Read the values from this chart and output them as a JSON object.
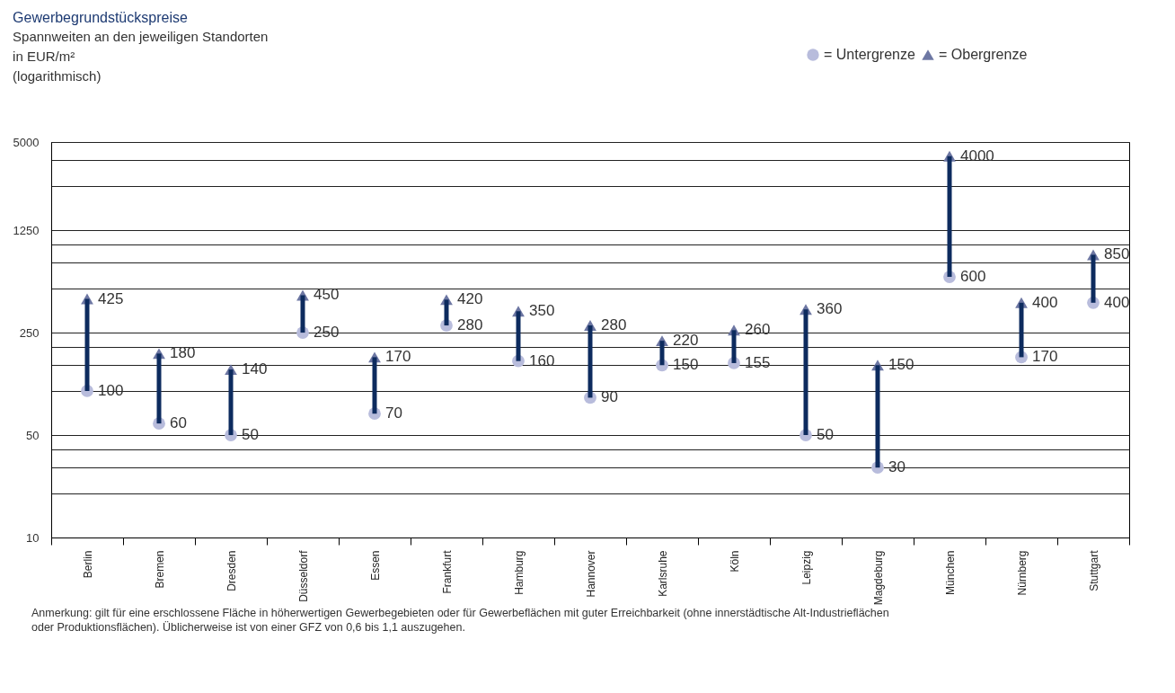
{
  "chart_data": {
    "type": "scatter",
    "title": "Gewerbegrundstückspreise",
    "subtitle": "Spannweiten an den jeweiligen Standorten\nin EUR/m²\n(logarithmisch)",
    "categories": [
      "Berlin",
      "Bremen",
      "Dresden",
      "Düsseldorf",
      "Essen",
      "Frankfurt",
      "Hamburg",
      "Hannover",
      "Karlsruhe",
      "Köln",
      "Leipzig",
      "Magdeburg",
      "München",
      "Nürnberg",
      "Stuttgart"
    ],
    "series": [
      {
        "type": "bar",
        "color": "#0d2b5e",
        "base": [
          100,
          60,
          50,
          250,
          70,
          280,
          160,
          90,
          150,
          155,
          50,
          30,
          600,
          170,
          400
        ],
        "values": [
          325,
          120,
          90,
          200,
          100,
          140,
          190,
          190,
          70,
          105,
          310,
          120,
          3400,
          230,
          450
        ]
      },
      {
        "name": "= Untergrenze",
        "marker": "circle",
        "color": "#b8bcdc",
        "values": [
          100,
          60,
          50,
          250,
          70,
          280,
          160,
          90,
          150,
          155,
          50,
          30,
          600,
          170,
          400
        ],
        "value_labels": [
          "100",
          "60",
          "50",
          "250",
          "70",
          "280",
          "160",
          "90",
          "150",
          "155",
          "50",
          "30",
          "600",
          "170",
          "400"
        ]
      },
      {
        "name": "= Obergrenze",
        "marker": "triangle",
        "color": "#6d77a3",
        "values": [
          425,
          180,
          140,
          450,
          170,
          420,
          350,
          280,
          220,
          260,
          360,
          150,
          4000,
          400,
          850
        ],
        "value_labels": [
          "425",
          "180",
          "140",
          "450",
          "170",
          "420",
          "350",
          "280",
          "220",
          "260",
          "360",
          "150",
          "4000",
          "400",
          "850"
        ]
      }
    ],
    "log": "y",
    "ylim": [
      10,
      5000
    ],
    "yticks": [
      10,
      {
        "value": 20,
        "label": null
      },
      {
        "value": 30,
        "label": null
      },
      {
        "value": 40,
        "label": null
      },
      50,
      {
        "value": 100,
        "label": null
      },
      {
        "value": 150,
        "label": null
      },
      {
        "value": 200,
        "label": null
      },
      250,
      {
        "value": 500,
        "label": null
      },
      {
        "value": 750,
        "label": null
      },
      {
        "value": 1000,
        "label": null
      },
      1250,
      {
        "value": 2500,
        "label": null
      },
      {
        "value": 3750,
        "label": null
      },
      5000
    ],
    "grid": "y",
    "legend": "top right",
    "annotations": [
      "Anmerkung: gilt für eine erschlossene Fläche in höherwertigen Gewerbegebieten oder für Gewerbeflächen mit guter Erreichbarkeit (ohne innerstädtische Alt-Industrieflächen oder Produktionsflächen). Üblicherweise ist von einer GFZ von 0,6 bis 1,1 auszugehen."
    ]
  }
}
